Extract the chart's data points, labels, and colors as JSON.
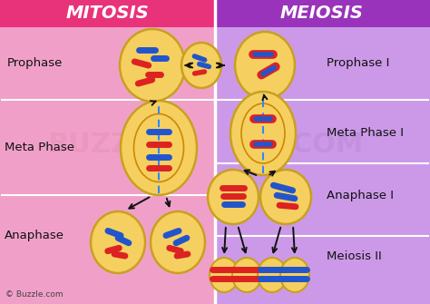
{
  "title_left": "MITOSIS",
  "title_right": "MEIOSIS",
  "title_left_bg": "#e8337a",
  "title_right_bg": "#9933bb",
  "left_bg": "#f0a0c8",
  "right_bg": "#cc99e8",
  "cell_fill": "#f5d060",
  "cell_edge": "#c8a020",
  "cell_edge2": "#b08010",
  "red_color": "#dd2222",
  "blue_color": "#2255cc",
  "spindle_color": "#3388ff",
  "arc_color": "#cc8800",
  "arrow_color": "#111111",
  "label_color": "#111111",
  "watermark_left_color": "#e890b8",
  "watermark_right_color": "#bb88d8",
  "copyright_color": "#444444",
  "white": "#ffffff",
  "row_div_color": "#ffffff",
  "buzzle_left": "BUZ",
  "buzzle_right": "ZLE.COM"
}
